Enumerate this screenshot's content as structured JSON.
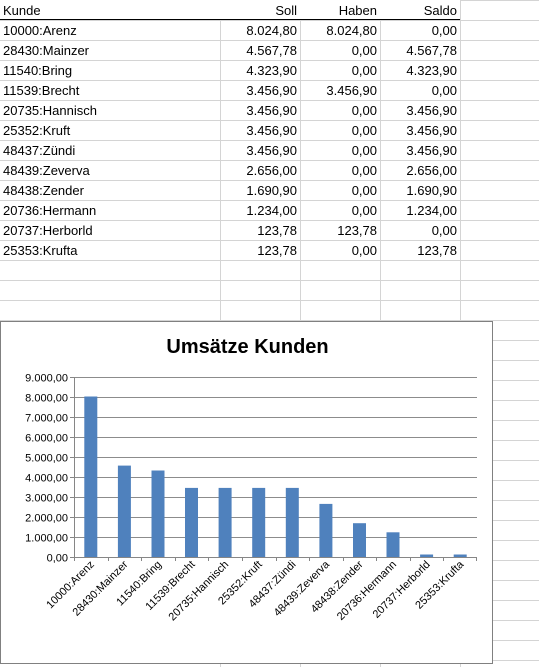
{
  "table": {
    "headers": [
      "Kunde",
      "Soll",
      "Haben",
      "Saldo"
    ],
    "rows": [
      [
        "10000:Arenz",
        "8.024,80",
        "8.024,80",
        "0,00"
      ],
      [
        "28430:Mainzer",
        "4.567,78",
        "0,00",
        "4.567,78"
      ],
      [
        "11540:Bring",
        "4.323,90",
        "0,00",
        "4.323,90"
      ],
      [
        "11539:Brecht",
        "3.456,90",
        "3.456,90",
        "0,00"
      ],
      [
        "20735:Hannisch",
        "3.456,90",
        "0,00",
        "3.456,90"
      ],
      [
        "25352:Kruft",
        "3.456,90",
        "0,00",
        "3.456,90"
      ],
      [
        "48437:Zündi",
        "3.456,90",
        "0,00",
        "3.456,90"
      ],
      [
        "48439:Zeverva",
        "2.656,00",
        "0,00",
        "2.656,00"
      ],
      [
        "48438:Zender",
        "1.690,90",
        "0,00",
        "1.690,90"
      ],
      [
        "20736:Hermann",
        "1.234,00",
        "0,00",
        "1.234,00"
      ],
      [
        "20737:Herborld",
        "123,78",
        "123,78",
        "0,00"
      ],
      [
        "25353:Krufta",
        "123,78",
        "0,00",
        "123,78"
      ]
    ]
  },
  "chart_data": {
    "type": "bar",
    "title": "Umsätze Kunden",
    "categories": [
      "10000:Arenz",
      "28430:Mainzer",
      "11540:Bring",
      "11539:Brecht",
      "20735:Hannisch",
      "25352:Kruft",
      "48437:Zündi",
      "48439:Zeverva",
      "48438:Zender",
      "20736:Hermann",
      "20737:Herborld",
      "25353:Krufta"
    ],
    "values": [
      8024.8,
      4567.78,
      4323.9,
      3456.9,
      3456.9,
      3456.9,
      3456.9,
      2656.0,
      1690.9,
      1234.0,
      123.78,
      123.78
    ],
    "ylim": [
      0,
      9000
    ],
    "yticks": [
      "0,00",
      "1.000,00",
      "2.000,00",
      "3.000,00",
      "4.000,00",
      "5.000,00",
      "6.000,00",
      "7.000,00",
      "8.000,00",
      "9.000,00"
    ],
    "grid": true,
    "legend": "none",
    "bar_color": "#4f81bd",
    "xlabel": "",
    "ylabel": ""
  }
}
